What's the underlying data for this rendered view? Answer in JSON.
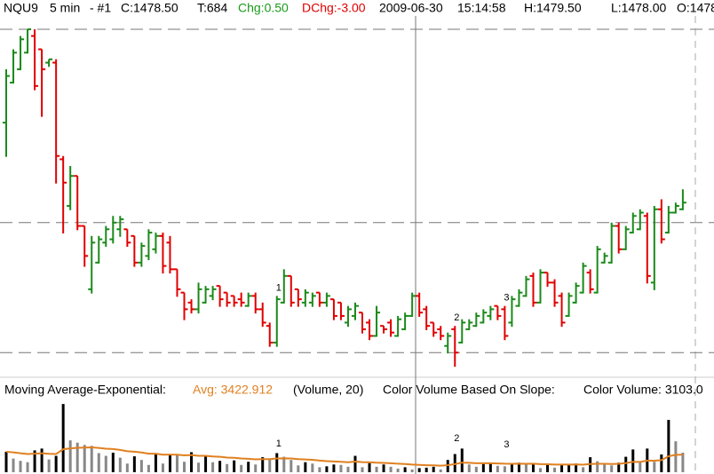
{
  "chart_data": {
    "type": "ohlc",
    "header": [
      "NQU9",
      "5 min",
      "- #1",
      "C:1478.50",
      "T:684",
      "Chg:0.50",
      "DChg:-3.00",
      "2009-06-30",
      "15:14:58",
      "H:1479.50",
      "L:1478.00",
      "O:1478."
    ],
    "header_colors": [
      "#000",
      "#000",
      "#000",
      "#000",
      "#000",
      "#1a9a1a",
      "#e00000",
      "#000",
      "#000",
      "#000",
      "#000",
      "#000"
    ],
    "up_color": "#1a8a1a",
    "down_color": "#e00000",
    "ylim": [
      1465.4,
      1492.5
    ],
    "hlines": [
      1491.5,
      1477,
      1467.25
    ],
    "ohlc": [
      [
        1484.5,
        1488.5,
        1482,
        1488
      ],
      [
        1487.5,
        1490,
        1487.5,
        1489.75
      ],
      [
        1488.5,
        1491,
        1488.5,
        1490.75
      ],
      [
        1489.75,
        1491.5,
        1489.75,
        1491.5
      ],
      [
        1491,
        1491.5,
        1487,
        1487.25
      ],
      [
        1490,
        1490,
        1485,
        1488.5
      ],
      [
        1489,
        1489.25,
        1488.75,
        1489.25
      ],
      [
        1489,
        1489.25,
        1480,
        1482
      ],
      [
        1481.75,
        1482,
        1476.25,
        1480
      ],
      [
        1478.25,
        1481.25,
        1478,
        1480.5
      ],
      [
        1480.5,
        1480.5,
        1476.5,
        1476.75
      ],
      [
        1476.75,
        1476.75,
        1473.75,
        1474.5
      ],
      [
        1472,
        1476,
        1471.75,
        1475.5
      ],
      [
        1474,
        1476,
        1474,
        1475.75
      ],
      [
        1475.5,
        1476.75,
        1475.25,
        1476.5
      ],
      [
        1475.75,
        1477.5,
        1475.5,
        1477
      ],
      [
        1476.5,
        1477.5,
        1476,
        1477.25
      ],
      [
        1476.5,
        1476.5,
        1475.25,
        1475.5
      ],
      [
        1476,
        1476,
        1473.75,
        1474
      ],
      [
        1474,
        1475.5,
        1473.75,
        1475.25
      ],
      [
        1474.5,
        1476.5,
        1474.25,
        1476.25
      ],
      [
        1475,
        1476.25,
        1474.75,
        1476
      ],
      [
        1476,
        1476.25,
        1473.25,
        1473.75
      ],
      [
        1475.5,
        1476,
        1473.25,
        1473.5
      ],
      [
        1473.5,
        1473.5,
        1471.5,
        1472
      ],
      [
        1471.75,
        1471.75,
        1469.75,
        1470.5
      ],
      [
        1471,
        1471.25,
        1470.25,
        1470.5
      ],
      [
        1470.5,
        1472.5,
        1470.25,
        1472
      ],
      [
        1471,
        1472.25,
        1471,
        1472
      ],
      [
        1471.5,
        1472.25,
        1471.25,
        1472
      ],
      [
        1472.25,
        1472.25,
        1470.75,
        1471.25
      ],
      [
        1471.75,
        1471.75,
        1470.75,
        1471
      ],
      [
        1471.5,
        1471.5,
        1470.75,
        1471
      ],
      [
        1471.25,
        1471.75,
        1470.75,
        1471
      ],
      [
        1470.75,
        1471.75,
        1470.75,
        1471.5
      ],
      [
        1471.5,
        1471.75,
        1470.25,
        1470.5
      ],
      [
        1470.5,
        1471,
        1469.25,
        1469.5
      ],
      [
        1469.25,
        1469.5,
        1467.75,
        1468
      ],
      [
        1468,
        1471.5,
        1467.75,
        1471.25
      ],
      [
        1471,
        1473.5,
        1471,
        1473
      ],
      [
        1473,
        1473,
        1470.75,
        1471
      ],
      [
        1472,
        1472,
        1470.75,
        1471.25
      ],
      [
        1471,
        1472,
        1470.75,
        1471.75
      ],
      [
        1471,
        1471.75,
        1470.75,
        1471.5
      ],
      [
        1471.75,
        1471.75,
        1470.75,
        1471
      ],
      [
        1471,
        1471.75,
        1470.75,
        1471.5
      ],
      [
        1471.25,
        1471.25,
        1469.75,
        1470
      ],
      [
        1471,
        1471,
        1469.75,
        1470
      ],
      [
        1469.5,
        1470.75,
        1469.25,
        1470.5
      ],
      [
        1470,
        1471,
        1469.75,
        1470.75
      ],
      [
        1470.25,
        1470.25,
        1468.75,
        1469
      ],
      [
        1469.5,
        1469.75,
        1468.25,
        1468.5
      ],
      [
        1468.5,
        1470.75,
        1468.5,
        1470.25
      ],
      [
        1469.25,
        1469.25,
        1468.75,
        1469
      ],
      [
        1469.5,
        1469.75,
        1468.5,
        1468.75
      ],
      [
        1468.5,
        1470,
        1468.5,
        1469.75
      ],
      [
        1469,
        1470.25,
        1469,
        1470
      ],
      [
        1470,
        1471.75,
        1470,
        1471.5
      ],
      [
        1471.5,
        1471.75,
        1470,
        1470.25
      ],
      [
        1470.5,
        1470.75,
        1469,
        1469.25
      ],
      [
        1469.5,
        1469.5,
        1468.5,
        1468.75
      ],
      [
        1469,
        1469.25,
        1468.25,
        1468.5
      ],
      [
        1467.75,
        1468.75,
        1467.25,
        1468.5
      ],
      [
        1469,
        1469.25,
        1466.25,
        1467.25
      ],
      [
        1468,
        1469.75,
        1468,
        1469.5
      ],
      [
        1469,
        1469.75,
        1469,
        1469.5
      ],
      [
        1469.25,
        1470.25,
        1469.25,
        1470
      ],
      [
        1469.5,
        1470.5,
        1469.5,
        1470.25
      ],
      [
        1470,
        1470.75,
        1469.75,
        1470.5
      ],
      [
        1470.75,
        1470.75,
        1469.75,
        1470
      ],
      [
        1470.5,
        1470.75,
        1468.25,
        1468.5
      ],
      [
        1469.5,
        1471.5,
        1469.25,
        1471.25
      ],
      [
        1470.75,
        1472,
        1470.75,
        1471.75
      ],
      [
        1471.5,
        1473,
        1471.5,
        1472.75
      ],
      [
        1473,
        1473.25,
        1470.75,
        1471
      ],
      [
        1471,
        1473.5,
        1471,
        1473.25
      ],
      [
        1473.25,
        1473.25,
        1472.25,
        1472.5
      ],
      [
        1472.5,
        1472.75,
        1470.75,
        1471
      ],
      [
        1471.5,
        1471.75,
        1469.25,
        1469.5
      ],
      [
        1470,
        1471.75,
        1470,
        1471.5
      ],
      [
        1471,
        1472.5,
        1471,
        1472.25
      ],
      [
        1471.75,
        1474,
        1471.75,
        1473.75
      ],
      [
        1473.25,
        1473.5,
        1471.75,
        1472
      ],
      [
        1471.75,
        1475.25,
        1471.75,
        1475
      ],
      [
        1474,
        1474.75,
        1474,
        1474.5
      ],
      [
        1474,
        1477,
        1474,
        1476.75
      ],
      [
        1476.75,
        1477,
        1474.75,
        1475
      ],
      [
        1475,
        1476.75,
        1475,
        1476.5
      ],
      [
        1476.25,
        1477.75,
        1476.25,
        1477.5
      ],
      [
        1476.5,
        1478,
        1476.5,
        1477.75
      ],
      [
        1477.5,
        1477.75,
        1472.5,
        1473
      ],
      [
        1472.5,
        1478.25,
        1472,
        1478
      ],
      [
        1478,
        1478.75,
        1475.5,
        1475.75
      ],
      [
        1476.25,
        1478.25,
        1476.25,
        1477.75
      ],
      [
        1477.75,
        1478.5,
        1477.75,
        1478.25
      ],
      [
        1478,
        1479.5,
        1478,
        1478.5
      ]
    ],
    "annotations": [
      {
        "text": "1",
        "index": 38
      },
      {
        "text": "2",
        "index": 63
      },
      {
        "text": "3",
        "index": 70
      }
    ],
    "volume": {
      "labels": [
        "Moving Average-Exponential:",
        "Avg: 3422.912",
        "(Volume, 20)",
        "Color Volume Based On Slope:",
        "Color Volume: 3103.0"
      ],
      "label_colors": [
        "#000",
        "#e08020",
        "#000",
        "#000",
        "#000"
      ],
      "ema_period": 20,
      "ema_color": "#e08020",
      "up_color": "#000",
      "down_color": "#888",
      "ylim": [
        0,
        16000
      ],
      "values": [
        4500,
        3000,
        2500,
        2200,
        4800,
        5200,
        2800,
        3600,
        15000,
        7000,
        6500,
        6000,
        5800,
        4200,
        3600,
        4300,
        3200,
        1900,
        3500,
        2700,
        1600,
        4000,
        1900,
        3900,
        3800,
        2300,
        4400,
        2100,
        3500,
        2200,
        2500,
        1800,
        2600,
        1600,
        2300,
        1700,
        3300,
        3000,
        4200,
        3400,
        2700,
        1500,
        2200,
        1900,
        1100,
        1300,
        1700,
        1600,
        1200,
        3600,
        1100,
        2000,
        1200,
        1700,
        1200,
        800,
        1100,
        600,
        900,
        1000,
        1200,
        600,
        2700,
        4000,
        5200,
        1700,
        1200,
        1800,
        2100,
        1400,
        1300,
        1800,
        2100,
        1700,
        1900,
        900,
        1600,
        1000,
        1600,
        1800,
        1900,
        1100,
        3300,
        2400,
        1700,
        1500,
        2100,
        3400,
        5000,
        2300,
        5200,
        2300,
        3900,
        11500,
        6800,
        4300
      ]
    }
  }
}
